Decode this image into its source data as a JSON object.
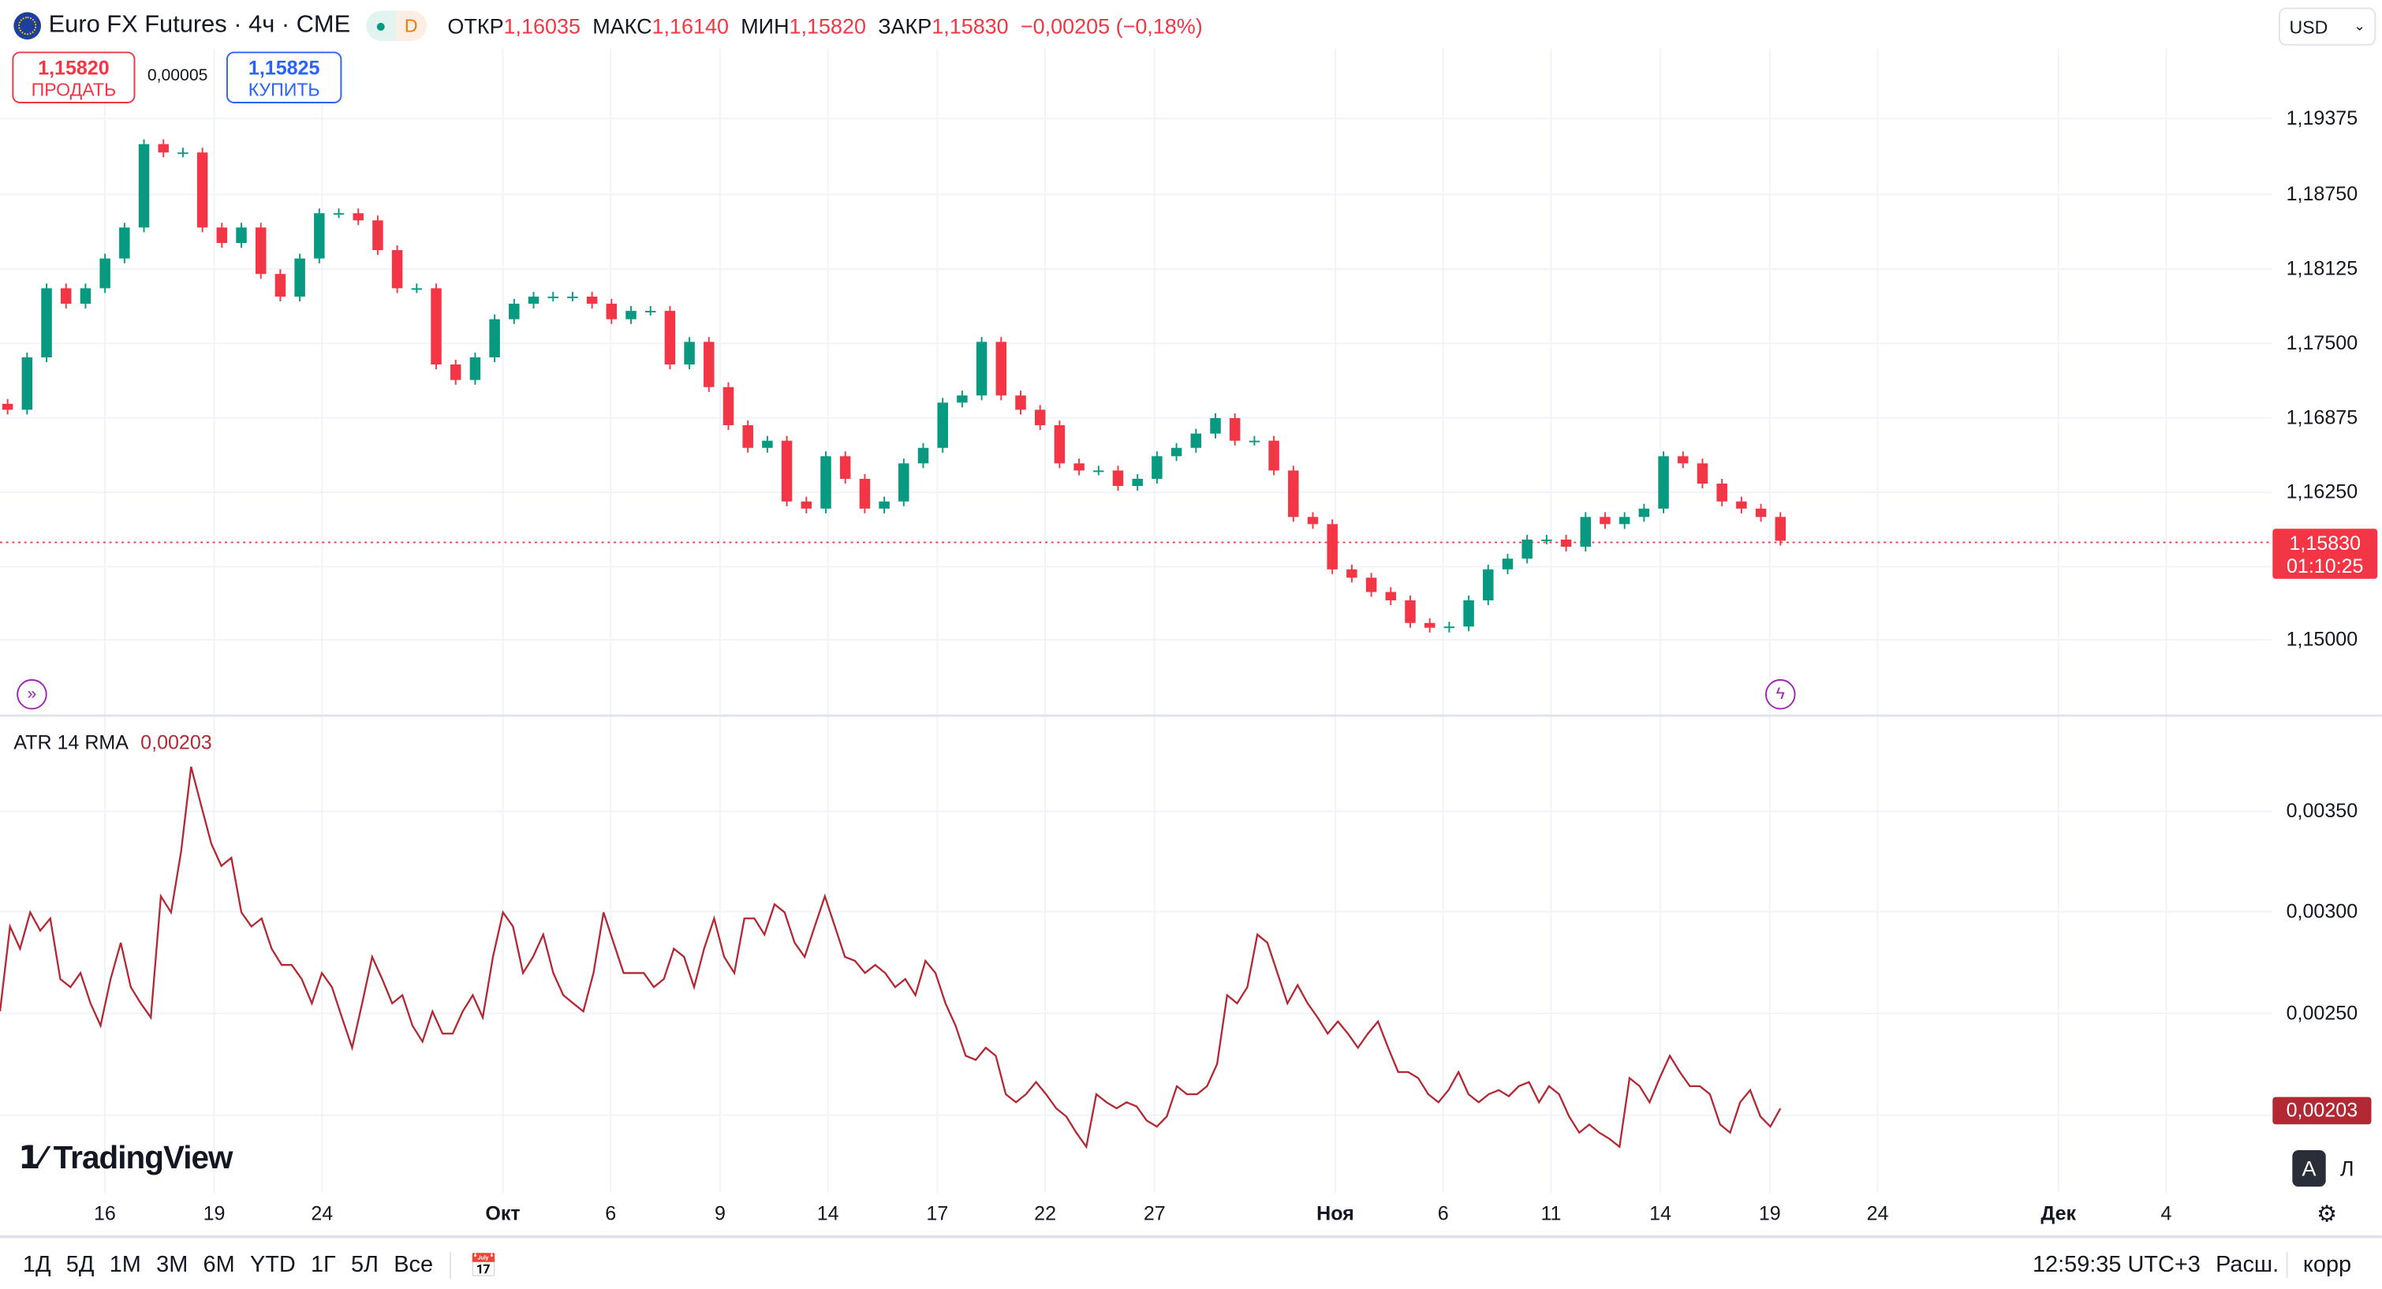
{
  "header": {
    "title": "Euro FX Futures · 4ч · CME",
    "pill_d": "D",
    "open_label": "ОТКР",
    "open": "1,16035",
    "high_label": "МАКС",
    "high": "1,16140",
    "low_label": "МИН",
    "low": "1,15820",
    "close_label": "ЗАКР",
    "close": "1,15830",
    "change": "−0,00205 (−0,18%)",
    "currency": "USD"
  },
  "trade": {
    "sell_price": "1,15820",
    "sell_label": "ПРОДАТЬ",
    "spread": "0,00005",
    "buy_price": "1,15825",
    "buy_label": "КУПИТЬ"
  },
  "colors": {
    "up": "#089981",
    "down": "#f23645",
    "atr": "#b22833",
    "buy": "#2962ff"
  },
  "price_axis": {
    "ticks": [
      "1,19375",
      "1,18750",
      "1,18125",
      "1,17500",
      "1,16875",
      "1,16250",
      "1,15000"
    ],
    "current_price": "1,15830",
    "countdown": "01:10:25"
  },
  "indicator": {
    "name": "ATR 14 RMA",
    "value": "0,00203",
    "ticks": [
      "0,00350",
      "0,00300",
      "0,00250"
    ]
  },
  "date_axis": [
    {
      "label": "16"
    },
    {
      "label": "19"
    },
    {
      "label": "24"
    },
    {
      "label": "Окт",
      "bold": true
    },
    {
      "label": "6"
    },
    {
      "label": "9"
    },
    {
      "label": "14"
    },
    {
      "label": "17"
    },
    {
      "label": "22"
    },
    {
      "label": "27"
    },
    {
      "label": "Ноя",
      "bold": true
    },
    {
      "label": "6"
    },
    {
      "label": "11"
    },
    {
      "label": "14"
    },
    {
      "label": "19"
    },
    {
      "label": "24"
    },
    {
      "label": "Дек",
      "bold": true
    },
    {
      "label": "4"
    }
  ],
  "logo": "TradingView",
  "scale_buttons": {
    "auto": "A",
    "log": "Л"
  },
  "toolbar": {
    "ranges": [
      "1Д",
      "5Д",
      "1М",
      "3М",
      "6М",
      "YTD",
      "1Г",
      "5Л",
      "Все"
    ],
    "clock": "12:59:35 UTC+3",
    "ext": "Расш.",
    "adj": "корр"
  },
  "chart_data": [
    {
      "type": "candlestick",
      "title": "Euro FX Futures · 4ч · CME",
      "ylim": [
        1.1475,
        1.1975
      ],
      "close": [
        1.1693,
        1.1737,
        1.1795,
        1.1782,
        1.1795,
        1.182,
        1.1846,
        1.1916,
        1.1909,
        1.1909,
        1.1846,
        1.1833,
        1.1846,
        1.1807,
        1.1788,
        1.182,
        1.1858,
        1.1858,
        1.1852,
        1.1827,
        1.1795,
        1.1795,
        1.1731,
        1.1718,
        1.1737,
        1.1769,
        1.1782,
        1.1788,
        1.1788,
        1.1788,
        1.1782,
        1.1769,
        1.1776,
        1.1776,
        1.1731,
        1.175,
        1.1712,
        1.168,
        1.1661,
        1.1667,
        1.1616,
        1.161,
        1.1654,
        1.1635,
        1.161,
        1.1616,
        1.1648,
        1.1661,
        1.1699,
        1.1705,
        1.175,
        1.1705,
        1.1693,
        1.168,
        1.1648,
        1.1642,
        1.1642,
        1.1629,
        1.1635,
        1.1654,
        1.1661,
        1.1673,
        1.1686,
        1.1667,
        1.1667,
        1.1642,
        1.1603,
        1.1597,
        1.1559,
        1.1552,
        1.154,
        1.1533,
        1.1514,
        1.151,
        1.1511,
        1.1533,
        1.1559,
        1.1568,
        1.1584,
        1.1584,
        1.1578,
        1.1603,
        1.1597,
        1.1603,
        1.161,
        1.1654,
        1.1648,
        1.1631,
        1.1616,
        1.161,
        1.1603,
        1.1583
      ]
    },
    {
      "type": "line",
      "title": "ATR 14 RMA",
      "ylim": [
        0.0017,
        0.0038
      ],
      "values": [
        0.00251,
        0.00293,
        0.00282,
        0.003,
        0.00291,
        0.00297,
        0.00267,
        0.00263,
        0.0027,
        0.00255,
        0.00244,
        0.00267,
        0.00285,
        0.00263,
        0.00255,
        0.00248,
        0.00308,
        0.003,
        0.0033,
        0.00372,
        0.00353,
        0.00334,
        0.00323,
        0.00327,
        0.003,
        0.00293,
        0.00297,
        0.00282,
        0.00274,
        0.00274,
        0.00267,
        0.00255,
        0.0027,
        0.00263,
        0.00248,
        0.00233,
        0.00255,
        0.00278,
        0.00267,
        0.00255,
        0.00259,
        0.00244,
        0.00236,
        0.00251,
        0.0024,
        0.0024,
        0.00251,
        0.00259,
        0.00248,
        0.00278,
        0.003,
        0.00293,
        0.0027,
        0.00278,
        0.00289,
        0.0027,
        0.00259,
        0.00255,
        0.00251,
        0.0027,
        0.003,
        0.00285,
        0.0027,
        0.0027,
        0.0027,
        0.00263,
        0.00267,
        0.00282,
        0.00278,
        0.00263,
        0.00282,
        0.00297,
        0.00278,
        0.0027,
        0.00297,
        0.00297,
        0.00289,
        0.00304,
        0.003,
        0.00285,
        0.00278,
        0.00293,
        0.00308,
        0.00293,
        0.00278,
        0.00276,
        0.0027,
        0.00274,
        0.0027,
        0.00263,
        0.00267,
        0.00259,
        0.00276,
        0.0027,
        0.00255,
        0.00244,
        0.00229,
        0.00227,
        0.00233,
        0.00229,
        0.0021,
        0.00206,
        0.0021,
        0.00216,
        0.0021,
        0.00203,
        0.00199,
        0.00191,
        0.00184,
        0.0021,
        0.00206,
        0.00203,
        0.00206,
        0.00204,
        0.00197,
        0.00194,
        0.00199,
        0.00214,
        0.0021,
        0.0021,
        0.00214,
        0.00225,
        0.00259,
        0.00255,
        0.00263,
        0.00289,
        0.00285,
        0.0027,
        0.00255,
        0.00264,
        0.00255,
        0.00248,
        0.0024,
        0.00246,
        0.0024,
        0.00233,
        0.0024,
        0.00246,
        0.00233,
        0.00221,
        0.00221,
        0.00218,
        0.0021,
        0.00206,
        0.00212,
        0.00221,
        0.0021,
        0.00206,
        0.0021,
        0.00212,
        0.00209,
        0.00214,
        0.00216,
        0.00206,
        0.00214,
        0.0021,
        0.00199,
        0.00191,
        0.00195,
        0.00191,
        0.00188,
        0.00184,
        0.00218,
        0.00214,
        0.00206,
        0.00218,
        0.00229,
        0.00221,
        0.00214,
        0.00214,
        0.0021,
        0.00195,
        0.00191,
        0.00206,
        0.00212,
        0.00199,
        0.00194,
        0.00203
      ]
    }
  ]
}
